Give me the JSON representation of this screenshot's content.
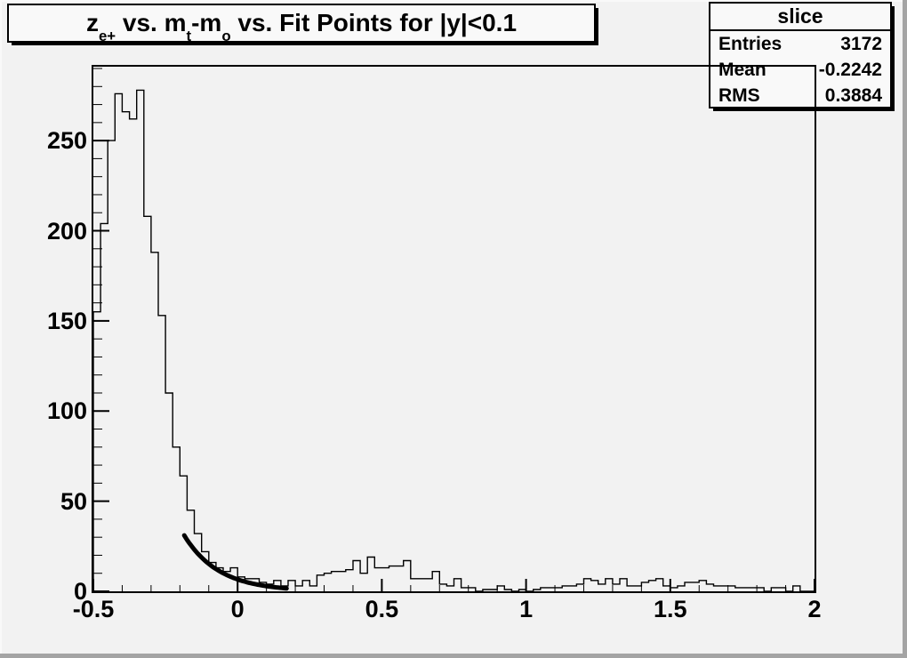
{
  "window": {
    "background": "#f2f2f2",
    "border_light": "#f9f9f9",
    "border_dark": "#a4a4a4",
    "pave_fill": "#f9f9f9",
    "line_color": "#000000"
  },
  "title_box": {
    "plain": "z_e+ vs. m_t-m_o vs. Fit Points for |y|<0.1",
    "segments": [
      {
        "text": "z"
      },
      {
        "sub": "e+"
      },
      {
        "text": " vs. m"
      },
      {
        "sub": "t"
      },
      {
        "text": "-m"
      },
      {
        "sub": "o"
      },
      {
        "text": " vs. Fit Points for |y|<0.1"
      }
    ]
  },
  "stats_box": {
    "title": "slice",
    "rows": [
      {
        "label": "Entries",
        "value": "3172"
      },
      {
        "label": "Mean",
        "value": "-0.2242"
      },
      {
        "label": "RMS",
        "value": "0.3884"
      }
    ]
  },
  "chart_data": {
    "type": "bar",
    "style": "step-histogram",
    "title": "z_e+ vs. m_t-m_o vs. Fit Points for |y|<0.1",
    "xlabel": "",
    "ylabel": "",
    "xlim": [
      -0.5,
      2.0
    ],
    "ylim": [
      0,
      291
    ],
    "grid": false,
    "legend": false,
    "bins": {
      "x_start": -0.5,
      "bin_width": 0.025,
      "counts": [
        155,
        204,
        250,
        276,
        266,
        262,
        278,
        208,
        188,
        153,
        110,
        80,
        64,
        45,
        32,
        22,
        16,
        13,
        11,
        13,
        8,
        7,
        7,
        5,
        4,
        6,
        3,
        6,
        3,
        6,
        3,
        9,
        10,
        11,
        11,
        12,
        17,
        10,
        19,
        13,
        13,
        14,
        14,
        17,
        7,
        7,
        7,
        11,
        4,
        3,
        7,
        2,
        2,
        0,
        1,
        1,
        3,
        1,
        0,
        1,
        0,
        1,
        2,
        2,
        2,
        3,
        3,
        4,
        7,
        6,
        4,
        7,
        4,
        7,
        3,
        3,
        5,
        6,
        7,
        3,
        2,
        3,
        5,
        5,
        6,
        4,
        3,
        3,
        3,
        2,
        2,
        2,
        2,
        0,
        2,
        2,
        0,
        3,
        0,
        0
      ]
    },
    "x_ticks": {
      "labels": [
        "-0.5",
        "0",
        "0.5",
        "1",
        "1.5",
        "2"
      ],
      "values": [
        -0.5,
        0,
        0.5,
        1,
        1.5,
        2
      ],
      "minor_step": 0.1
    },
    "y_ticks": {
      "labels": [
        "0",
        "50",
        "100",
        "150",
        "200",
        "250"
      ],
      "values": [
        0,
        50,
        100,
        150,
        200,
        250
      ],
      "minor_step": 10
    },
    "fit_curve": {
      "shape": "exponential",
      "x_start": -0.185,
      "y_start": 31,
      "x_end": 0.17,
      "y_end": 1.6,
      "line_width": 5,
      "color": "#000000"
    }
  }
}
